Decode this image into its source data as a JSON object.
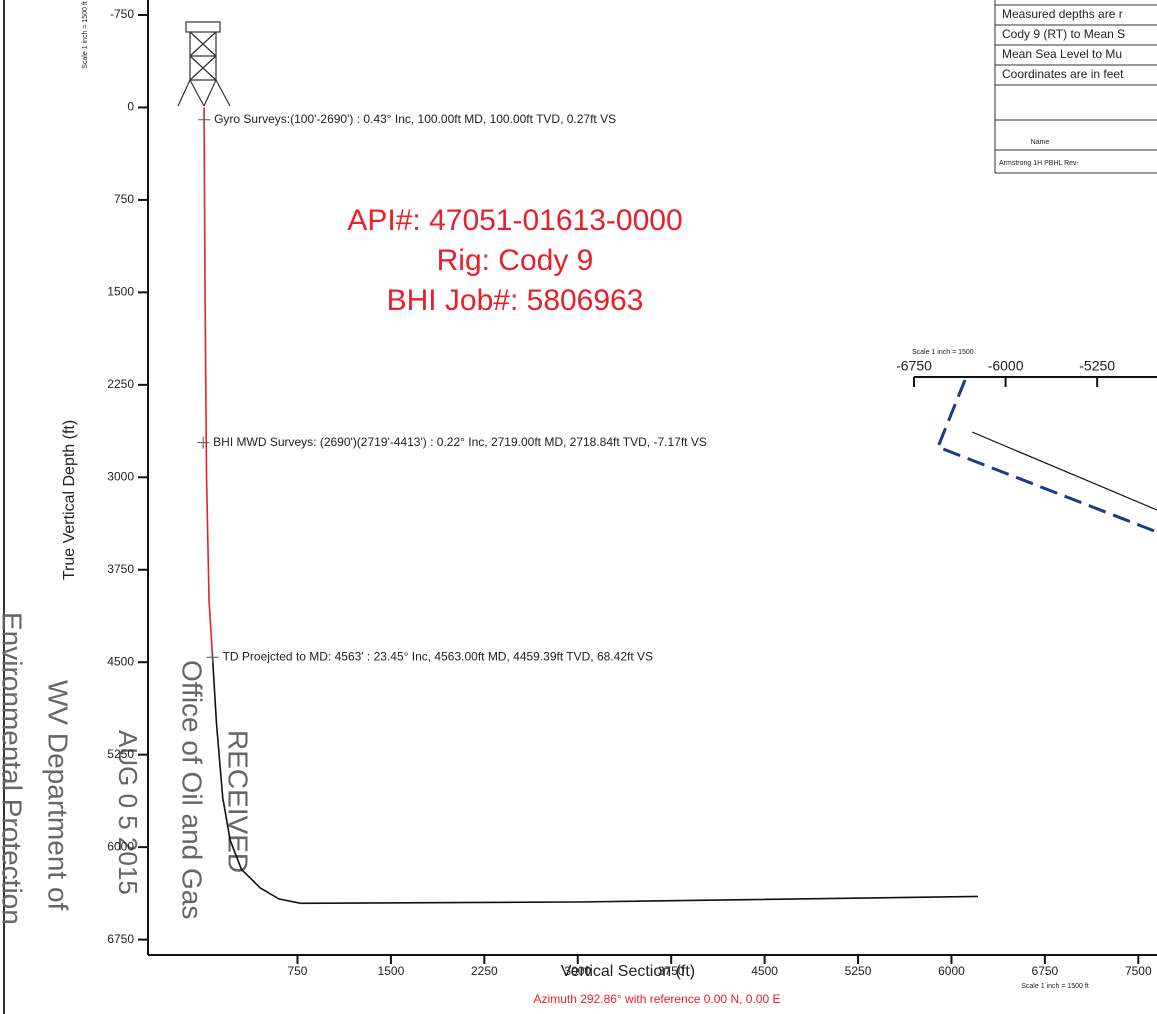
{
  "chart_data": [
    {
      "type": "line",
      "xlabel": "Vertical Section (ft)",
      "ylabel": "True Vertical Depth (ft)",
      "subtitle": "Azimuth 292.86° with reference 0.00 N, 0.00 E",
      "scale_notes": [
        "Scale 1 inch = 1500 ft",
        "Scale 1 inch = 1500 ft"
      ],
      "xlim": [
        -450,
        7650
      ],
      "ylim": [
        6875,
        -750
      ],
      "xticks": [
        750,
        1500,
        2250,
        3000,
        3750,
        4500,
        5250,
        6000,
        6750,
        7500
      ],
      "yticks": [
        -750,
        0,
        750,
        1500,
        2250,
        3000,
        3750,
        4500,
        5250,
        6000,
        6750
      ],
      "series": [
        {
          "color": "#e8202a",
          "x": [
            0,
            8,
            20,
            40,
            68
          ],
          "values": [
            0,
            1500,
            3000,
            4000,
            4459
          ]
        },
        {
          "color": "#111111",
          "x": [
            68,
            100,
            150,
            210,
            300,
            450,
            600,
            775,
            3000,
            6213
          ],
          "values": [
            4459,
            5000,
            5600,
            5945,
            6180,
            6330,
            6420,
            6456,
            6445,
            6400
          ]
        }
      ],
      "annotations": [
        {
          "text": "Gyro Surveys:(100'-2690') : 0.43° Inc, 100.00ft MD, 100.00ft TVD, 0.27ft VS",
          "x": 0.27,
          "y": 100
        },
        {
          "text": "BHI MWD Surveys: (2690')(2719'-4413') : 0.22° Inc, 2719.00ft MD, 2718.84ft TVD, -7.17ft VS",
          "x": -7.17,
          "y": 2718.84
        },
        {
          "text": "TD Proejcted to MD: 4563' : 23.45° Inc, 4563.00ft MD, 4459.39ft TVD, 68.42ft VS",
          "x": 68.42,
          "y": 4459.39
        }
      ],
      "header_lines": [
        "API#: 47051-01613-0000",
        "Rig: Cody 9",
        "BHI Job#: 5806963"
      ],
      "stamp": [
        "RECEIVED",
        "Office of Oil and Gas",
        "AUG 0 5 2015",
        "WV Department of",
        "Environmental Protection"
      ],
      "info_table": {
        "rows": [
          "Measured depths are r",
          "Cody 9 (RT) to Mean S",
          "Mean Sea Level to Mu",
          "Coordinates are in feet"
        ],
        "name_header": "Name",
        "entry": "Armstrong 1H PBHL Rev-"
      }
    },
    {
      "type": "plan",
      "scale_note": "Scale 1 inch = 1500",
      "xlim": [
        -6750,
        -4760
      ],
      "xticks": [
        -6750,
        -6000,
        -5250
      ]
    }
  ]
}
